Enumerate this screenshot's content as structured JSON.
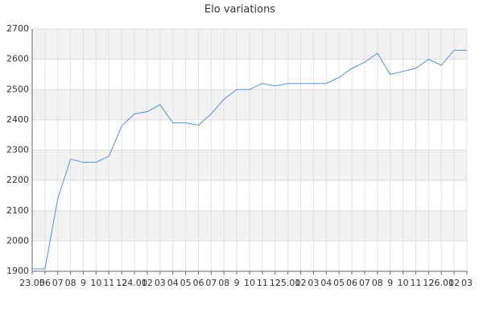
{
  "chart_data": {
    "type": "line",
    "title": "Elo variations",
    "categories": [
      "23.05",
      "06",
      "07",
      "08",
      "9",
      "10",
      "11",
      "12",
      "24.01",
      "02",
      "03",
      "04",
      "05",
      "06",
      "07",
      "08",
      "9",
      "10",
      "11",
      "12",
      "25.01",
      "02",
      "03",
      "04",
      "05",
      "06",
      "07",
      "08",
      "9",
      "10",
      "11",
      "12",
      "26.01",
      "02",
      "03"
    ],
    "series": [
      {
        "name": "Elo",
        "color": "#5b8fd9",
        "values": [
          1908,
          1908,
          2140,
          2270,
          2260,
          2260,
          2280,
          2380,
          2420,
          2427,
          2450,
          2390,
          2390,
          2382,
          2420,
          2468,
          2500,
          2500,
          2520,
          2512,
          2520,
          2520,
          2520,
          2520,
          2540,
          2570,
          2590,
          2620,
          2550,
          2560,
          2570,
          2600,
          2580,
          2630,
          2630
        ]
      }
    ],
    "ylim": [
      1900,
      2700
    ],
    "yticks": [
      1900,
      2000,
      2100,
      2200,
      2300,
      2400,
      2500,
      2600,
      2700
    ],
    "grid": true
  }
}
